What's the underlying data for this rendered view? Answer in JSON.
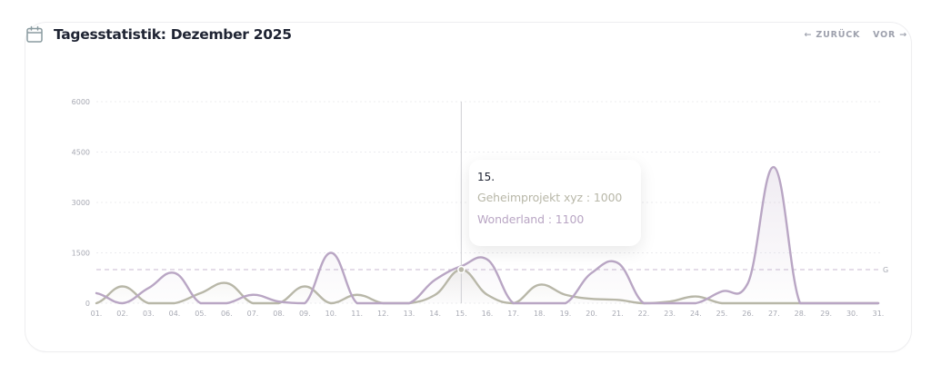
{
  "header": {
    "icon": "calendar-icon",
    "title": "Tagesstatistik: Dezember 2025"
  },
  "nav": {
    "prev_label": "← ZURÜCK",
    "next_label": "VOR →"
  },
  "colors": {
    "wonderland": "#b9a6c4",
    "geheimprojekt": "#b8b7a8",
    "grid": "#ececef",
    "threshold": "#c9b9d1",
    "crosshair": "#cfcfd4"
  },
  "tooltip": {
    "day": "15.",
    "rows": [
      {
        "label": "Geheimprojekt xyz : 1000",
        "series": "geheimprojekt"
      },
      {
        "label": "Wonderland : 1100",
        "series": "wonderland"
      }
    ]
  },
  "threshold_label": "G",
  "chart_data": {
    "type": "area",
    "title": "Tagesstatistik: Dezember 2025",
    "xlabel": "",
    "ylabel": "",
    "ylim": [
      0,
      6000
    ],
    "yticks": [
      0,
      1500,
      3000,
      4500,
      6000
    ],
    "grid": true,
    "threshold": 1000,
    "categories": [
      "01.",
      "02.",
      "03.",
      "04.",
      "05.",
      "06.",
      "07.",
      "08.",
      "09.",
      "10.",
      "11.",
      "12.",
      "13.",
      "14.",
      "15.",
      "16.",
      "17.",
      "18.",
      "19.",
      "20.",
      "21.",
      "22.",
      "23.",
      "24.",
      "25.",
      "26.",
      "27.",
      "28.",
      "29.",
      "30.",
      "31."
    ],
    "series": [
      {
        "name": "Geheimprojekt xyz",
        "values": [
          0,
          500,
          0,
          0,
          300,
          600,
          0,
          0,
          500,
          0,
          250,
          0,
          0,
          250,
          1000,
          250,
          0,
          550,
          250,
          130,
          100,
          0,
          50,
          200,
          0,
          0,
          0,
          0,
          0,
          0,
          0
        ]
      },
      {
        "name": "Wonderland",
        "values": [
          300,
          0,
          450,
          900,
          0,
          0,
          250,
          50,
          0,
          1500,
          0,
          0,
          0,
          700,
          1100,
          1300,
          0,
          0,
          0,
          900,
          1200,
          0,
          0,
          0,
          350,
          600,
          4050,
          0,
          0,
          0,
          0
        ]
      }
    ],
    "highlight": {
      "day": "15.",
      "values": {
        "Geheimprojekt xyz": 1000,
        "Wonderland": 1100
      }
    }
  }
}
